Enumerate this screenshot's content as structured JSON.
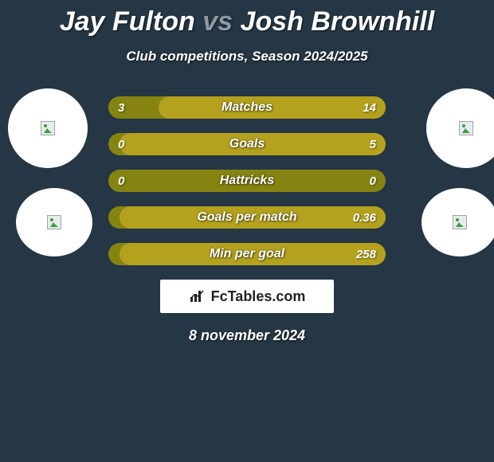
{
  "title": {
    "player1": "Jay Fulton",
    "vs": "vs",
    "player2": "Josh Brownhill"
  },
  "subtitle": "Club competitions, Season 2024/2025",
  "colors": {
    "background": "#253645",
    "bar_base": "#868411",
    "bar_fill": "#b4a21e",
    "text": "#ffffff",
    "vs": "#8b9aa3",
    "watermark_bg": "#ffffff",
    "watermark_text": "#222222"
  },
  "bars": [
    {
      "label": "Matches",
      "left": "3",
      "right": "14",
      "fill_side": "right",
      "fill_pct": 82
    },
    {
      "label": "Goals",
      "left": "0",
      "right": "5",
      "fill_side": "right",
      "fill_pct": 96
    },
    {
      "label": "Hattricks",
      "left": "0",
      "right": "0",
      "fill_side": "right",
      "fill_pct": 0
    },
    {
      "label": "Goals per match",
      "left": "",
      "right": "0.36",
      "fill_side": "right",
      "fill_pct": 96
    },
    {
      "label": "Min per goal",
      "left": "",
      "right": "258",
      "fill_side": "right",
      "fill_pct": 96
    }
  ],
  "watermark": "FcTables.com",
  "date": "8 november 2024",
  "circles": {
    "tl_icon": "broken-image-icon",
    "tr_icon": "broken-image-icon",
    "bl_icon": "broken-image-icon",
    "br_icon": "broken-image-icon"
  }
}
